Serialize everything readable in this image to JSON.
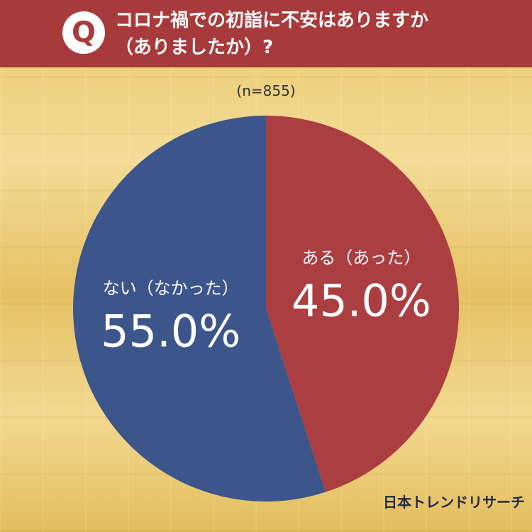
{
  "header": {
    "badge": "Q",
    "question_line1": "コロナ禍での初詣に不安はありますか",
    "question_line2": "（ありましたか）?"
  },
  "sample_size": "(n=855)",
  "brand": "日本トレンドリサーチ",
  "colors": {
    "header_bg": "#a83a3c",
    "slice_yes": "#ab3e41",
    "slice_no": "#3c558b"
  },
  "chart_data": {
    "type": "pie",
    "title": "コロナ禍での初詣に不安はありますか（ありましたか）?",
    "slices": [
      {
        "label": "ある（あった）",
        "value": 45.0,
        "display": "45.0%",
        "color": "#ab3e41"
      },
      {
        "label": "ない（なかった）",
        "value": 55.0,
        "display": "55.0%",
        "color": "#3c558b"
      }
    ],
    "start": "12 o'clock",
    "direction": "clockwise"
  }
}
